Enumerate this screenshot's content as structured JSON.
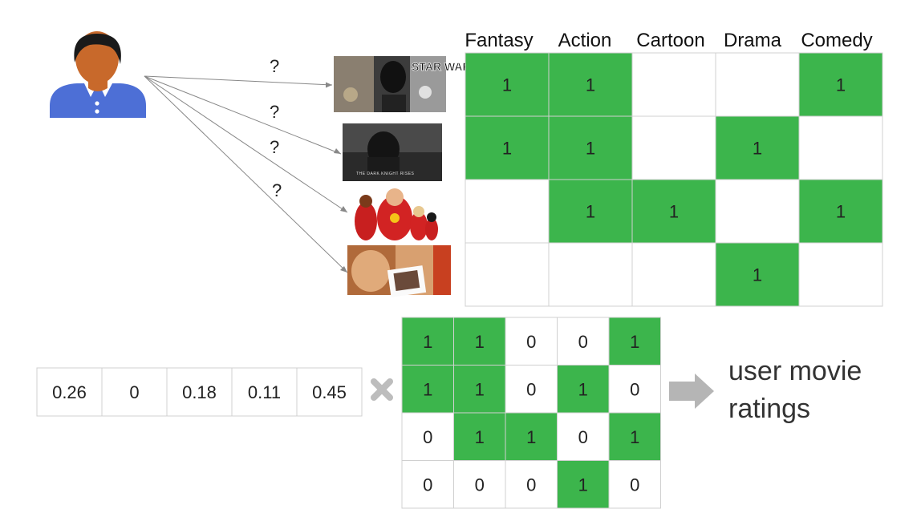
{
  "user": {
    "icon": "user-avatar-icon"
  },
  "question_marks": [
    "?",
    "?",
    "?",
    "?"
  ],
  "movies": [
    {
      "icon": "star-wars-poster",
      "logo_text": "STAR WARS"
    },
    {
      "icon": "dark-knight-rises-poster",
      "title_text": "THE DARK KNIGHT RISES"
    },
    {
      "icon": "incredibles-poster"
    },
    {
      "icon": "memento-poster"
    }
  ],
  "genre_matrix": {
    "headers": [
      "Fantasy",
      "Action",
      "Cartoon",
      "Drama",
      "Comedy"
    ],
    "rows": [
      [
        "1",
        "1",
        "",
        "",
        "1"
      ],
      [
        "1",
        "1",
        "",
        "1",
        ""
      ],
      [
        "",
        "1",
        "1",
        "",
        "1"
      ],
      [
        "",
        "",
        "",
        "1",
        ""
      ]
    ]
  },
  "user_vector": [
    "0.26",
    "0",
    "0.18",
    "0.11",
    "0.45"
  ],
  "multiply_symbol": {
    "icon": "multiply-icon"
  },
  "binary_matrix": [
    [
      "1",
      "1",
      "0",
      "0",
      "1"
    ],
    [
      "1",
      "1",
      "0",
      "1",
      "0"
    ],
    [
      "0",
      "1",
      "1",
      "0",
      "1"
    ],
    [
      "0",
      "0",
      "0",
      "1",
      "0"
    ]
  ],
  "arrow": {
    "icon": "right-arrow-icon"
  },
  "result_label": [
    "user movie",
    "ratings"
  ],
  "colors": {
    "green": "#3cb54c",
    "grid": "#d0d0d0",
    "skin": "#c8692b",
    "shirt": "#4d6fd6",
    "arrow_gray": "#b5b5b5"
  }
}
